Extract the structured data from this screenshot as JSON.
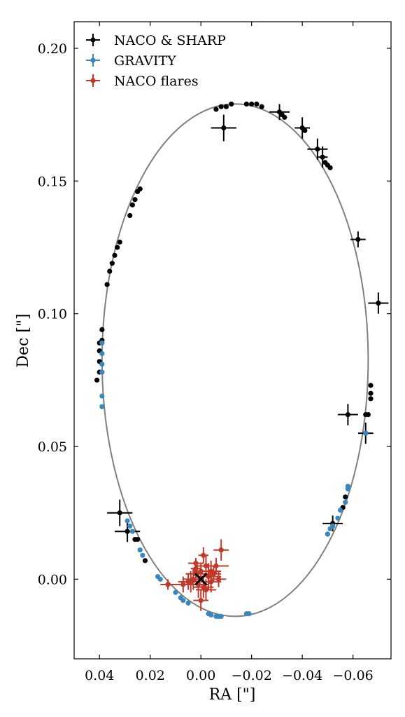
{
  "chart_data": {
    "type": "scatter",
    "xlabel": "RA [\"]",
    "ylabel": "Dec [\"]",
    "xlim": [
      0.05,
      -0.075
    ],
    "ylim": [
      -0.03,
      0.21
    ],
    "x_ticks": [
      0.04,
      0.02,
      0.0,
      -0.02,
      -0.04,
      -0.06
    ],
    "x_tick_labels": [
      "0.04",
      "0.02",
      "0.00",
      "−0.02",
      "−0.04",
      "−0.06"
    ],
    "y_ticks": [
      0.0,
      0.05,
      0.1,
      0.15,
      0.2
    ],
    "y_tick_labels": [
      "0.00",
      "0.05",
      "0.10",
      "0.15",
      "0.20"
    ],
    "legend_position": "top-left",
    "grid": false,
    "orbit": {
      "color": "#808080",
      "center_ra": -0.0135,
      "center_dec": 0.0825,
      "semi_axis_ra": 0.0525,
      "semi_axis_dec": 0.0965
    },
    "center_marker": {
      "ra": 0.0,
      "dec": 0.0,
      "symbol": "x",
      "color": "#000000"
    },
    "series": [
      {
        "name": "NACO & SHARP",
        "color": "#000000",
        "points": [
          {
            "x": -0.009,
            "y": 0.17,
            "xerr": 0.005,
            "yerr": 0.005
          },
          {
            "x": -0.006,
            "y": 0.177
          },
          {
            "x": -0.008,
            "y": 0.178
          },
          {
            "x": -0.01,
            "y": 0.178
          },
          {
            "x": -0.012,
            "y": 0.179
          },
          {
            "x": -0.018,
            "y": 0.179
          },
          {
            "x": -0.02,
            "y": 0.179
          },
          {
            "x": -0.022,
            "y": 0.179
          },
          {
            "x": -0.024,
            "y": 0.178
          },
          {
            "x": -0.031,
            "y": 0.176,
            "xerr": 0.004,
            "yerr": 0.003
          },
          {
            "x": -0.032,
            "y": 0.175
          },
          {
            "x": -0.033,
            "y": 0.174
          },
          {
            "x": -0.04,
            "y": 0.17,
            "xerr": 0.003,
            "yerr": 0.004
          },
          {
            "x": -0.041,
            "y": 0.169
          },
          {
            "x": -0.046,
            "y": 0.162,
            "xerr": 0.004,
            "yerr": 0.004
          },
          {
            "x": -0.048,
            "y": 0.159,
            "xerr": 0.002,
            "yerr": 0.004
          },
          {
            "x": -0.049,
            "y": 0.157
          },
          {
            "x": -0.05,
            "y": 0.156
          },
          {
            "x": -0.051,
            "y": 0.155
          },
          {
            "x": -0.062,
            "y": 0.128,
            "xerr": 0.003,
            "yerr": 0.003
          },
          {
            "x": -0.07,
            "y": 0.104,
            "xerr": 0.004,
            "yerr": 0.004
          },
          {
            "x": -0.067,
            "y": 0.073
          },
          {
            "x": -0.067,
            "y": 0.07
          },
          {
            "x": -0.067,
            "y": 0.068
          },
          {
            "x": -0.066,
            "y": 0.062
          },
          {
            "x": -0.065,
            "y": 0.062
          },
          {
            "x": -0.058,
            "y": 0.062,
            "xerr": 0.004,
            "yerr": 0.004
          },
          {
            "x": -0.065,
            "y": 0.055,
            "xerr": 0.003,
            "yerr": 0.004
          },
          {
            "x": -0.057,
            "y": 0.031
          },
          {
            "x": -0.056,
            "y": 0.027
          },
          {
            "x": -0.052,
            "y": 0.021,
            "xerr": 0.004,
            "yerr": 0.003
          },
          {
            "x": -0.05,
            "y": 0.017
          },
          {
            "x": 0.024,
            "y": 0.147
          },
          {
            "x": 0.025,
            "y": 0.146
          },
          {
            "x": 0.026,
            "y": 0.143
          },
          {
            "x": 0.027,
            "y": 0.141
          },
          {
            "x": 0.028,
            "y": 0.137
          },
          {
            "x": 0.032,
            "y": 0.127
          },
          {
            "x": 0.033,
            "y": 0.125
          },
          {
            "x": 0.034,
            "y": 0.122
          },
          {
            "x": 0.035,
            "y": 0.119
          },
          {
            "x": 0.036,
            "y": 0.116
          },
          {
            "x": 0.037,
            "y": 0.111
          },
          {
            "x": 0.039,
            "y": 0.094
          },
          {
            "x": 0.039,
            "y": 0.09
          },
          {
            "x": 0.04,
            "y": 0.089
          },
          {
            "x": 0.04,
            "y": 0.086
          },
          {
            "x": 0.04,
            "y": 0.082
          },
          {
            "x": 0.04,
            "y": 0.078
          },
          {
            "x": 0.041,
            "y": 0.075
          },
          {
            "x": 0.032,
            "y": 0.025,
            "xerr": 0.005,
            "yerr": 0.005
          },
          {
            "x": 0.029,
            "y": 0.018,
            "xerr": 0.005,
            "yerr": 0.004
          },
          {
            "x": 0.026,
            "y": 0.015
          },
          {
            "x": 0.025,
            "y": 0.015
          },
          {
            "x": 0.022,
            "y": 0.007
          }
        ]
      },
      {
        "name": "GRAVITY",
        "color": "#3a87c0",
        "points": [
          {
            "x": 0.039,
            "y": 0.089
          },
          {
            "x": 0.039,
            "y": 0.085
          },
          {
            "x": 0.039,
            "y": 0.081
          },
          {
            "x": 0.039,
            "y": 0.078
          },
          {
            "x": 0.039,
            "y": 0.069
          },
          {
            "x": 0.039,
            "y": 0.065
          },
          {
            "x": 0.029,
            "y": 0.022
          },
          {
            "x": 0.028,
            "y": 0.02
          },
          {
            "x": 0.027,
            "y": 0.018
          },
          {
            "x": 0.024,
            "y": 0.011
          },
          {
            "x": 0.023,
            "y": 0.009
          },
          {
            "x": 0.017,
            "y": 0.001
          },
          {
            "x": 0.016,
            "y": 0.0
          },
          {
            "x": 0.01,
            "y": -0.005
          },
          {
            "x": 0.008,
            "y": -0.007
          },
          {
            "x": 0.007,
            "y": -0.008
          },
          {
            "x": 0.005,
            "y": -0.009
          },
          {
            "x": -0.003,
            "y": -0.013
          },
          {
            "x": -0.004,
            "y": -0.0135
          },
          {
            "x": -0.006,
            "y": -0.014
          },
          {
            "x": -0.007,
            "y": -0.014
          },
          {
            "x": -0.008,
            "y": -0.014
          },
          {
            "x": -0.018,
            "y": -0.013
          },
          {
            "x": -0.019,
            "y": -0.013
          },
          {
            "x": -0.05,
            "y": 0.017
          },
          {
            "x": -0.051,
            "y": 0.019
          },
          {
            "x": -0.052,
            "y": 0.02
          },
          {
            "x": -0.054,
            "y": 0.023
          },
          {
            "x": -0.055,
            "y": 0.026
          },
          {
            "x": -0.057,
            "y": 0.029
          },
          {
            "x": -0.058,
            "y": 0.034
          },
          {
            "x": -0.058,
            "y": 0.035
          },
          {
            "x": -0.065,
            "y": 0.055
          }
        ]
      },
      {
        "name": "NACO flares",
        "color": "#c0392b",
        "points": [
          {
            "x": -0.008,
            "y": 0.011,
            "xerr": 0.003,
            "yerr": 0.004
          },
          {
            "x": -0.006,
            "y": 0.005,
            "xerr": 0.005,
            "yerr": 0.003
          },
          {
            "x": -0.004,
            "y": 0.003,
            "xerr": 0.004,
            "yerr": 0.004
          },
          {
            "x": -0.003,
            "y": 0.001,
            "xerr": 0.005,
            "yerr": 0.005
          },
          {
            "x": -0.001,
            "y": 0.009,
            "xerr": 0.002,
            "yerr": 0.003
          },
          {
            "x": -0.002,
            "y": 0.005,
            "xerr": 0.004,
            "yerr": 0.004
          },
          {
            "x": -0.001,
            "y": -0.003,
            "xerr": 0.004,
            "yerr": 0.004
          },
          {
            "x": 0.001,
            "y": -0.002,
            "xerr": 0.004,
            "yerr": 0.005
          },
          {
            "x": 0.002,
            "y": 0.004,
            "xerr": 0.002,
            "yerr": 0.003
          },
          {
            "x": 0.002,
            "y": 0.002,
            "xerr": 0.004,
            "yerr": 0.003
          },
          {
            "x": 0.003,
            "y": 0.0,
            "xerr": 0.004,
            "yerr": 0.004
          },
          {
            "x": 0.004,
            "y": -0.001,
            "xerr": 0.004,
            "yerr": 0.004
          },
          {
            "x": 0.005,
            "y": -0.001,
            "xerr": 0.004,
            "yerr": 0.003
          },
          {
            "x": 0.007,
            "y": -0.002,
            "xerr": 0.004,
            "yerr": 0.003
          },
          {
            "x": 0.013,
            "y": -0.002,
            "xerr": 0.003,
            "yerr": 0.002
          },
          {
            "x": -0.004,
            "y": -0.001,
            "xerr": 0.004,
            "yerr": 0.004
          },
          {
            "x": -0.005,
            "y": 0.002,
            "xerr": 0.003,
            "yerr": 0.003
          },
          {
            "x": -0.007,
            "y": 0.0,
            "xerr": 0.003,
            "yerr": 0.003
          },
          {
            "x": -0.002,
            "y": -0.004,
            "xerr": 0.004,
            "yerr": 0.004
          },
          {
            "x": 0.0,
            "y": -0.008,
            "xerr": 0.003,
            "yerr": 0.004
          },
          {
            "x": 0.002,
            "y": 0.006,
            "xerr": 0.003,
            "yerr": 0.002
          },
          {
            "x": 0.0,
            "y": 0.003,
            "xerr": 0.003,
            "yerr": 0.003
          }
        ]
      }
    ]
  }
}
